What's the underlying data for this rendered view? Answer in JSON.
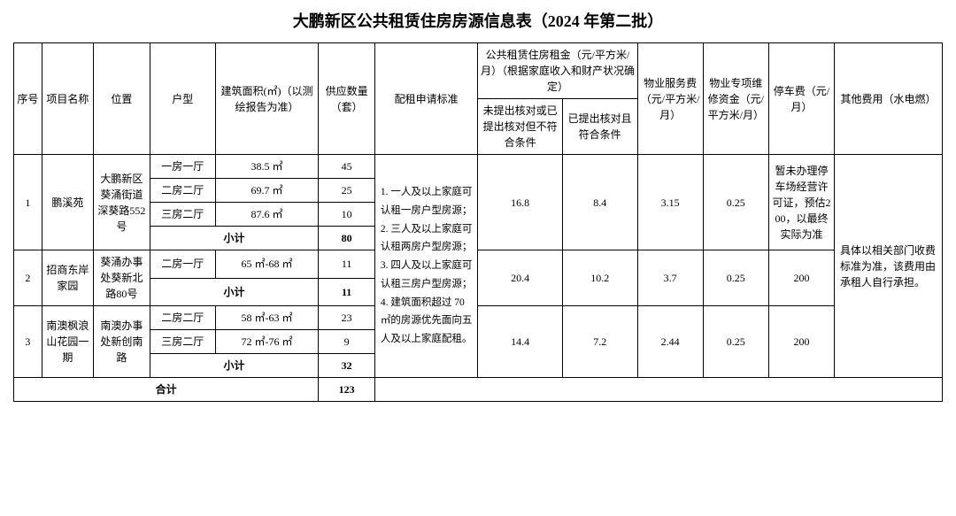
{
  "title": "大鹏新区公共租赁住房房源信息表（2024 年第二批）",
  "headers": {
    "seq": "序号",
    "project": "项目名称",
    "location": "位置",
    "unit_type": "户型",
    "area": "建筑面积(㎡)（以测绘报告为准）",
    "qty": "供应数量（套）",
    "criteria": "配租申请标准",
    "rent_group": "公共租赁住房租金（元/平方米/月）（根据家庭收入和财产状况确定）",
    "rent_a": "未提出核对或已提出核对但不符合条件",
    "rent_b": "已提出核对且符合条件",
    "svc_fee": "物业服务费（元/平方米/月）",
    "maint_fund": "物业专项维修资金（元/平方米/月）",
    "parking": "停车费（元/月）",
    "other": "其他费用（水电燃）"
  },
  "criteria_text": "1. 一人及以上家庭可认租一房户型房源；\n2. 三人及以上家庭可认租两房户型房源；\n3. 四人及以上家庭可认租三房户型房源；\n4. 建筑面积超过 70 ㎡的房源优先面向五人及以上家庭配租。",
  "other_fee_text": "具体以相关部门收费标准为准，该费用由承租人自行承担。",
  "p1": {
    "seq": "1",
    "name": "鹏溪苑",
    "location": "大鹏新区葵涌街道深葵路552号",
    "rent_a": "16.8",
    "rent_b": "8.4",
    "svc": "3.15",
    "fund": "0.25",
    "parking": "暂未办理停车场经营许可证，预估200，以最终实际为准",
    "r1_type": "一房一厅",
    "r1_area": "38.5 ㎡",
    "r1_qty": "45",
    "r2_type": "二房二厅",
    "r2_area": "69.7 ㎡",
    "r2_qty": "25",
    "r3_type": "三房二厅",
    "r3_area": "87.6 ㎡",
    "r3_qty": "10",
    "subtotal_qty": "80"
  },
  "p2": {
    "seq": "2",
    "name": "招商东岸家园",
    "location": "葵涌办事处葵新北路80号",
    "rent_a": "20.4",
    "rent_b": "10.2",
    "svc": "3.7",
    "fund": "0.25",
    "parking": "200",
    "r1_type": "二房一厅",
    "r1_area": "65 ㎡-68 ㎡",
    "r1_qty": "11",
    "subtotal_qty": "11"
  },
  "p3": {
    "seq": "3",
    "name": "南澳枫浪山花园一期",
    "location": "南澳办事处新创南路",
    "rent_a": "14.4",
    "rent_b": "7.2",
    "svc": "2.44",
    "fund": "0.25",
    "parking": "200",
    "r1_type": "二房二厅",
    "r1_area": "58 ㎡-63 ㎡",
    "r1_qty": "23",
    "r2_type": "三房二厅",
    "r2_area": "72 ㎡-76 ㎡",
    "r2_qty": "9",
    "subtotal_qty": "32"
  },
  "labels": {
    "subtotal": "小计",
    "total": "合计"
  },
  "total_qty": "123"
}
